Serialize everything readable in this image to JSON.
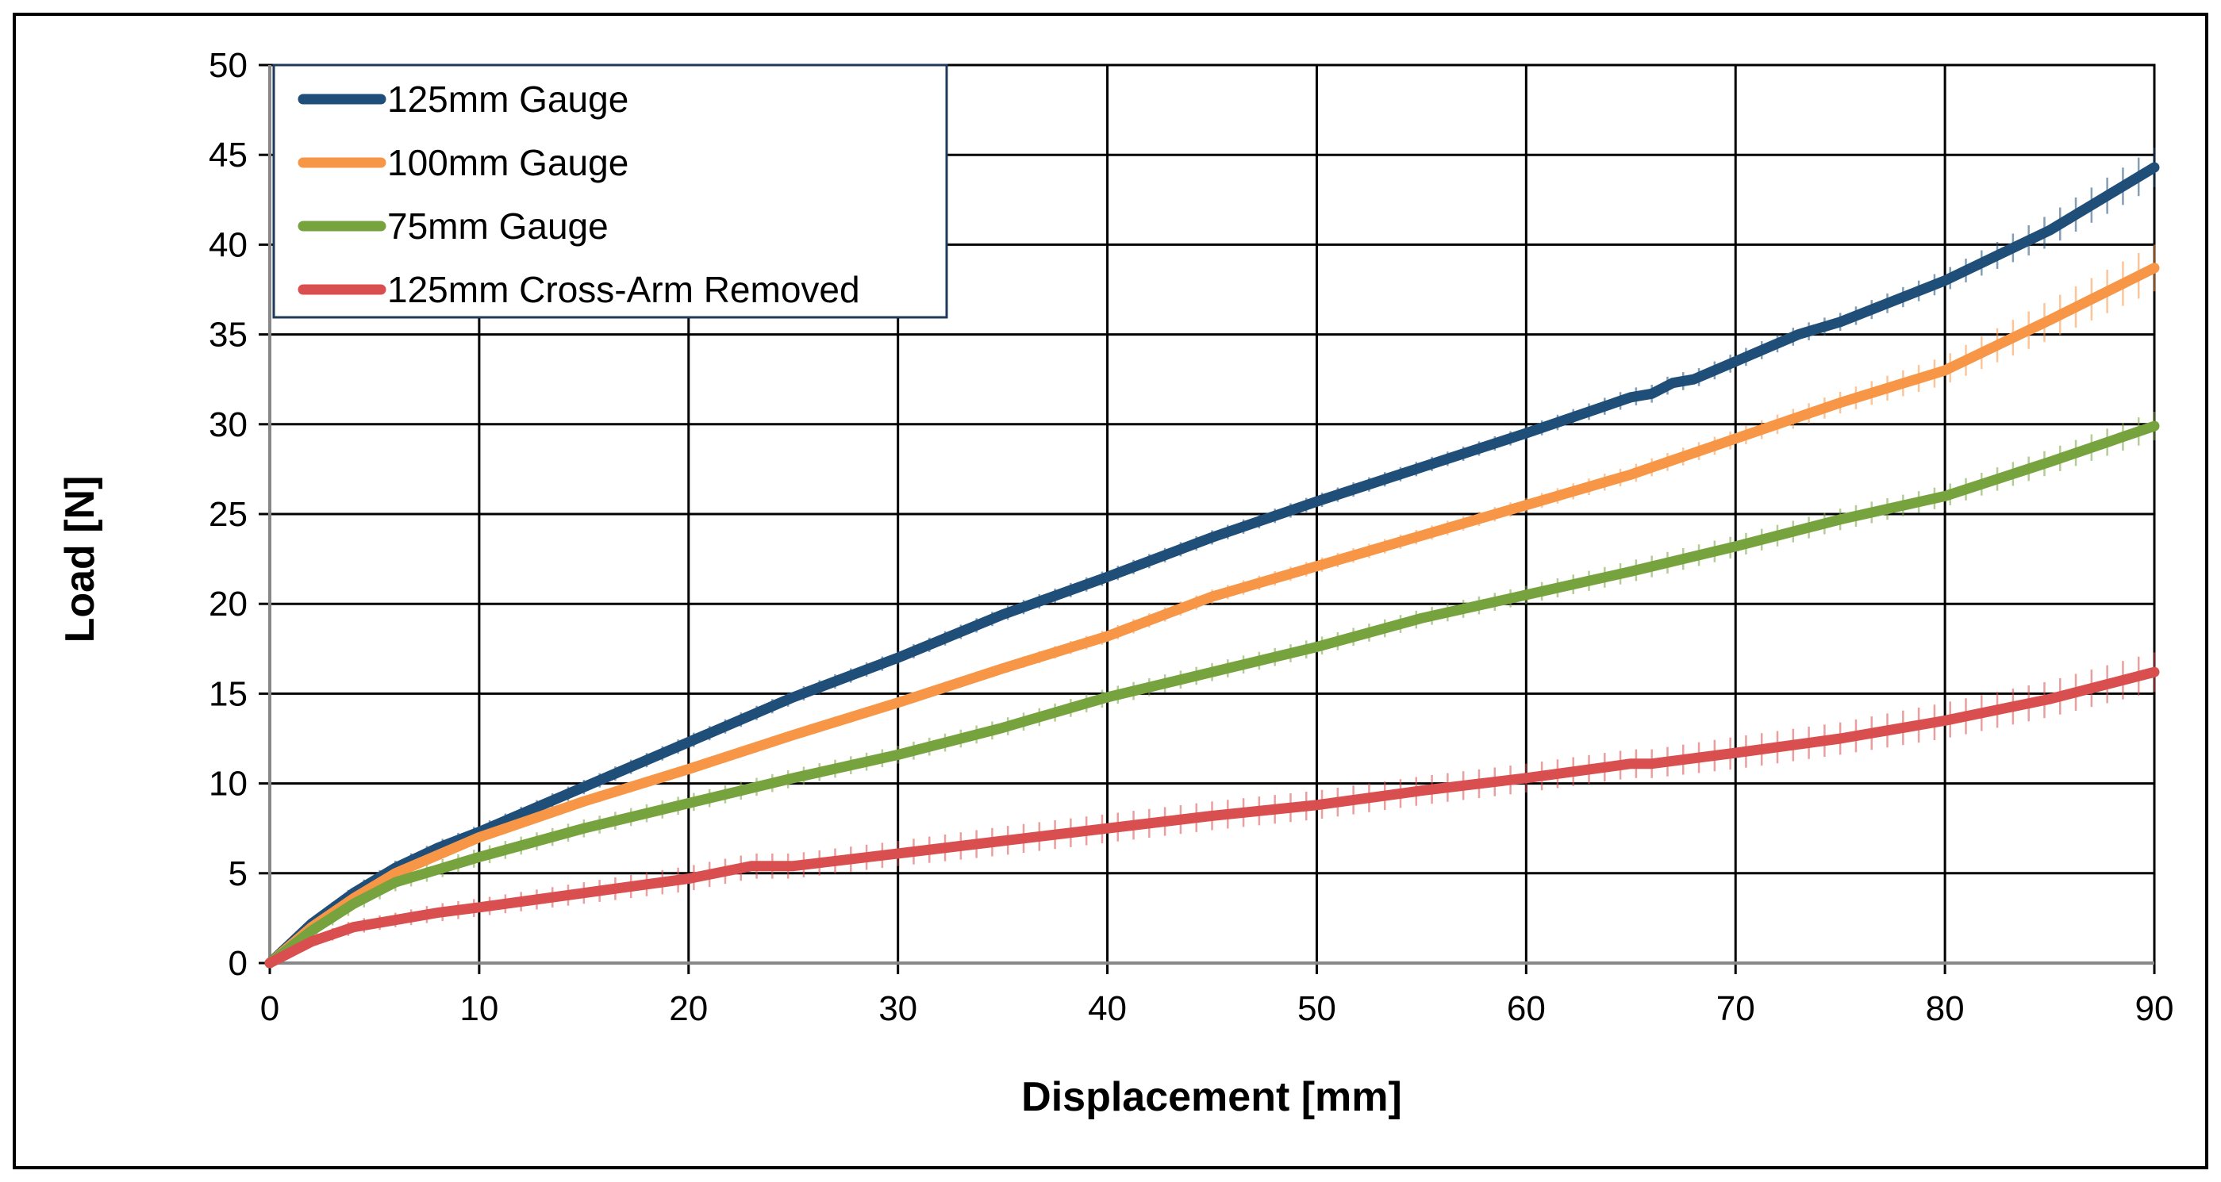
{
  "chart_data": {
    "type": "line",
    "title": "",
    "xlabel": "Displacement [mm]",
    "ylabel": "Load [N]",
    "xlim": [
      0,
      90
    ],
    "ylim": [
      0,
      50
    ],
    "xticks": [
      "0",
      "10",
      "20",
      "30",
      "40",
      "50",
      "60",
      "70",
      "80",
      "90"
    ],
    "yticks": [
      "0",
      "5",
      "10",
      "15",
      "20",
      "25",
      "30",
      "35",
      "40",
      "45",
      "50"
    ],
    "grid": true,
    "legend_position": "top-left",
    "error_bars": true,
    "series": [
      {
        "name": "125mm Gauge",
        "color": "#1F4E79",
        "x": [
          0,
          2,
          4,
          6,
          8,
          10,
          15,
          20,
          25,
          30,
          35,
          40,
          45,
          50,
          55,
          60,
          65,
          66,
          67,
          68,
          70,
          73,
          75,
          80,
          85,
          90
        ],
        "y": [
          0,
          2.2,
          3.9,
          5.3,
          6.4,
          7.3,
          9.8,
          12.3,
          14.8,
          17.0,
          19.4,
          21.5,
          23.7,
          25.7,
          27.6,
          29.5,
          31.5,
          31.7,
          32.3,
          32.5,
          33.5,
          35.0,
          35.7,
          38.0,
          40.8,
          44.3
        ],
        "err": [
          0,
          0.3,
          0.4,
          0.4,
          0.4,
          0.4,
          0.4,
          0.4,
          0.4,
          0.4,
          0.4,
          0.4,
          0.4,
          0.4,
          0.4,
          0.4,
          0.5,
          0.5,
          0.5,
          0.5,
          0.5,
          0.5,
          0.5,
          0.6,
          0.9,
          1.1
        ]
      },
      {
        "name": "100mm Gauge",
        "color": "#F79646",
        "x": [
          0,
          2,
          4,
          6,
          8,
          10,
          15,
          20,
          25,
          30,
          35,
          40,
          45,
          50,
          55,
          60,
          65,
          70,
          75,
          80,
          85,
          90
        ],
        "y": [
          0,
          2.0,
          3.6,
          5.0,
          6.0,
          7.0,
          9.0,
          10.8,
          12.7,
          14.5,
          16.4,
          18.2,
          20.4,
          22.1,
          23.8,
          25.5,
          27.2,
          29.2,
          31.2,
          33.0,
          35.8,
          38.7
        ],
        "err": [
          0,
          0.3,
          0.3,
          0.3,
          0.3,
          0.3,
          0.3,
          0.3,
          0.3,
          0.3,
          0.3,
          0.4,
          0.4,
          0.4,
          0.4,
          0.4,
          0.5,
          0.5,
          0.6,
          0.8,
          1.1,
          1.3
        ]
      },
      {
        "name": "75mm Gauge",
        "color": "#77A33F",
        "x": [
          0,
          2,
          4,
          6,
          8,
          10,
          15,
          20,
          25,
          30,
          35,
          40,
          45,
          50,
          55,
          60,
          65,
          70,
          75,
          80,
          85,
          90
        ],
        "y": [
          0,
          1.8,
          3.3,
          4.5,
          5.2,
          5.9,
          7.5,
          8.9,
          10.3,
          11.6,
          13.1,
          14.8,
          16.2,
          17.6,
          19.2,
          20.5,
          21.8,
          23.2,
          24.7,
          26.0,
          27.9,
          29.9
        ],
        "err": [
          0,
          0.4,
          0.5,
          0.5,
          0.5,
          0.5,
          0.5,
          0.5,
          0.5,
          0.5,
          0.5,
          0.5,
          0.5,
          0.5,
          0.5,
          0.5,
          0.6,
          0.6,
          0.6,
          0.6,
          0.7,
          0.8
        ]
      },
      {
        "name": "125mm Cross-Arm Removed",
        "color": "#D94F4F",
        "x": [
          0,
          2,
          4,
          6,
          8,
          10,
          15,
          20,
          23,
          25,
          30,
          35,
          40,
          45,
          50,
          55,
          60,
          65,
          66,
          70,
          75,
          80,
          85,
          90
        ],
        "y": [
          0,
          1.2,
          2.0,
          2.4,
          2.8,
          3.1,
          3.9,
          4.7,
          5.4,
          5.4,
          6.1,
          6.8,
          7.5,
          8.2,
          8.8,
          9.6,
          10.3,
          11.1,
          11.1,
          11.7,
          12.5,
          13.5,
          14.7,
          16.2
        ],
        "err": [
          0,
          0.3,
          0.4,
          0.4,
          0.5,
          0.5,
          0.6,
          0.7,
          0.7,
          0.7,
          0.7,
          0.8,
          0.8,
          0.8,
          0.8,
          0.8,
          0.8,
          0.8,
          0.8,
          0.9,
          0.9,
          1.0,
          1.0,
          1.1
        ]
      }
    ]
  }
}
